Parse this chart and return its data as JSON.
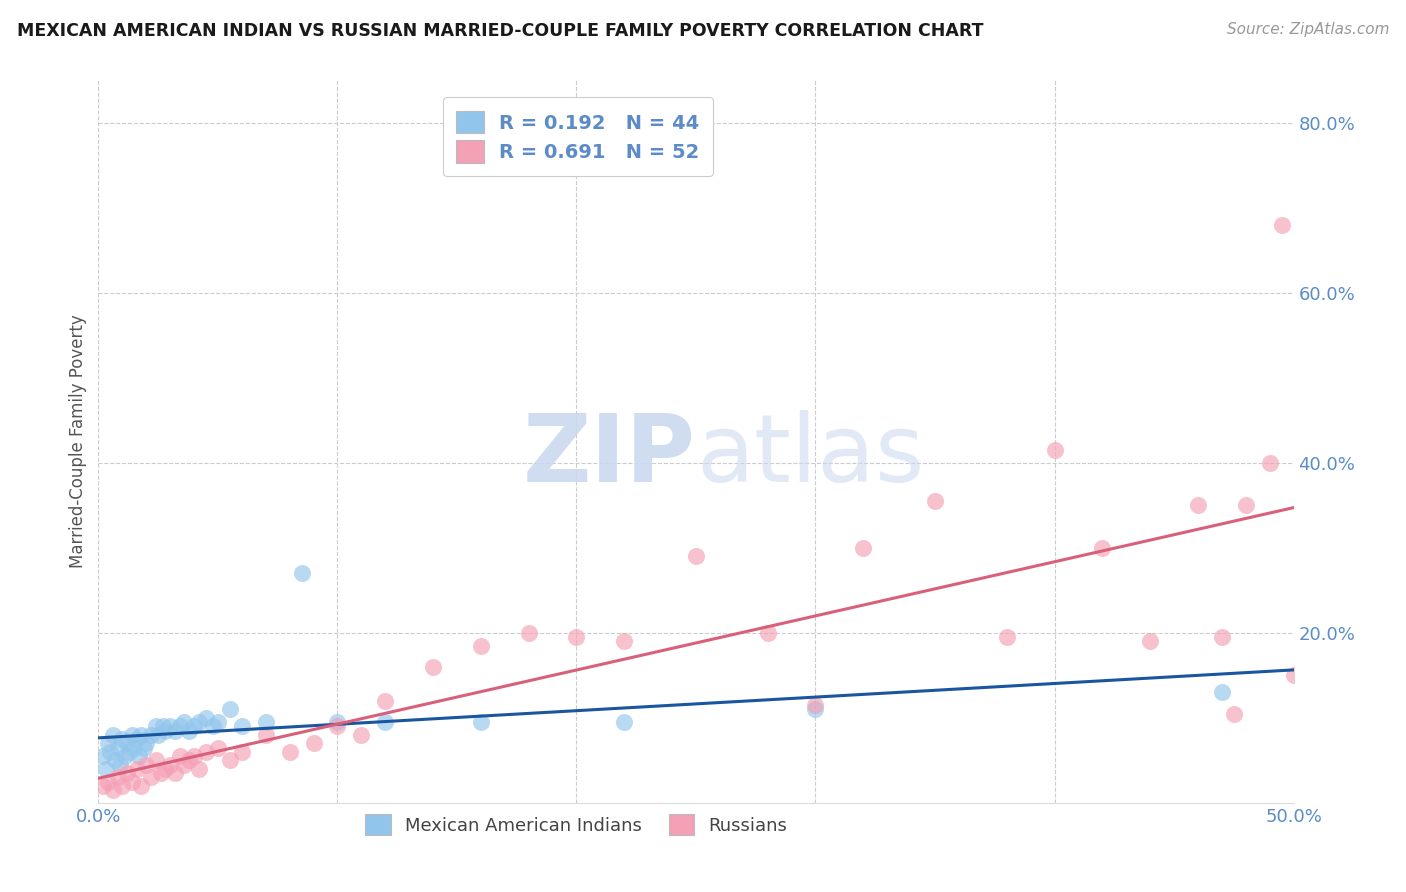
{
  "title": "MEXICAN AMERICAN INDIAN VS RUSSIAN MARRIED-COUPLE FAMILY POVERTY CORRELATION CHART",
  "source": "Source: ZipAtlas.com",
  "ylabel": "Married-Couple Family Poverty",
  "xlim": [
    0.0,
    0.5
  ],
  "ylim": [
    0.0,
    0.85
  ],
  "xticks": [
    0.0,
    0.1,
    0.2,
    0.3,
    0.4,
    0.5
  ],
  "xticklabels": [
    "0.0%",
    "",
    "",
    "",
    "",
    "50.0%"
  ],
  "yticks": [
    0.0,
    0.2,
    0.4,
    0.6,
    0.8
  ],
  "yticklabels": [
    "",
    "20.0%",
    "40.0%",
    "60.0%",
    "80.0%"
  ],
  "blue_R": 0.192,
  "blue_N": 44,
  "pink_R": 0.691,
  "pink_N": 52,
  "blue_color": "#92C5EC",
  "pink_color": "#F4A0B5",
  "blue_line_color": "#1A56A0",
  "pink_line_color": "#D9607A",
  "axis_label_color": "#5B8CC8",
  "tick_color": "#5B8CC8",
  "watermark_color": "#C8D8EE",
  "blue_scatter_x": [
    0.002,
    0.003,
    0.004,
    0.005,
    0.006,
    0.007,
    0.008,
    0.009,
    0.01,
    0.011,
    0.012,
    0.013,
    0.014,
    0.015,
    0.016,
    0.017,
    0.018,
    0.019,
    0.02,
    0.022,
    0.024,
    0.025,
    0.027,
    0.028,
    0.03,
    0.032,
    0.034,
    0.036,
    0.038,
    0.04,
    0.042,
    0.045,
    0.048,
    0.05,
    0.055,
    0.06,
    0.07,
    0.085,
    0.1,
    0.12,
    0.16,
    0.22,
    0.3,
    0.47
  ],
  "blue_scatter_y": [
    0.055,
    0.04,
    0.07,
    0.06,
    0.08,
    0.05,
    0.065,
    0.045,
    0.075,
    0.055,
    0.07,
    0.06,
    0.08,
    0.065,
    0.075,
    0.055,
    0.08,
    0.065,
    0.07,
    0.08,
    0.09,
    0.08,
    0.09,
    0.085,
    0.09,
    0.085,
    0.09,
    0.095,
    0.085,
    0.09,
    0.095,
    0.1,
    0.09,
    0.095,
    0.11,
    0.09,
    0.095,
    0.27,
    0.095,
    0.095,
    0.095,
    0.095,
    0.11,
    0.13
  ],
  "pink_scatter_x": [
    0.002,
    0.004,
    0.006,
    0.008,
    0.01,
    0.012,
    0.014,
    0.016,
    0.018,
    0.02,
    0.022,
    0.024,
    0.026,
    0.028,
    0.03,
    0.032,
    0.034,
    0.036,
    0.038,
    0.04,
    0.042,
    0.045,
    0.05,
    0.055,
    0.06,
    0.07,
    0.08,
    0.09,
    0.1,
    0.11,
    0.12,
    0.14,
    0.16,
    0.18,
    0.2,
    0.22,
    0.25,
    0.28,
    0.3,
    0.32,
    0.35,
    0.38,
    0.4,
    0.42,
    0.44,
    0.46,
    0.47,
    0.475,
    0.48,
    0.49,
    0.495,
    0.5
  ],
  "pink_scatter_y": [
    0.02,
    0.025,
    0.015,
    0.03,
    0.02,
    0.035,
    0.025,
    0.04,
    0.02,
    0.045,
    0.03,
    0.05,
    0.035,
    0.04,
    0.045,
    0.035,
    0.055,
    0.045,
    0.05,
    0.055,
    0.04,
    0.06,
    0.065,
    0.05,
    0.06,
    0.08,
    0.06,
    0.07,
    0.09,
    0.08,
    0.12,
    0.16,
    0.185,
    0.2,
    0.195,
    0.19,
    0.29,
    0.2,
    0.115,
    0.3,
    0.355,
    0.195,
    0.415,
    0.3,
    0.19,
    0.35,
    0.195,
    0.105,
    0.35,
    0.4,
    0.68,
    0.15
  ]
}
